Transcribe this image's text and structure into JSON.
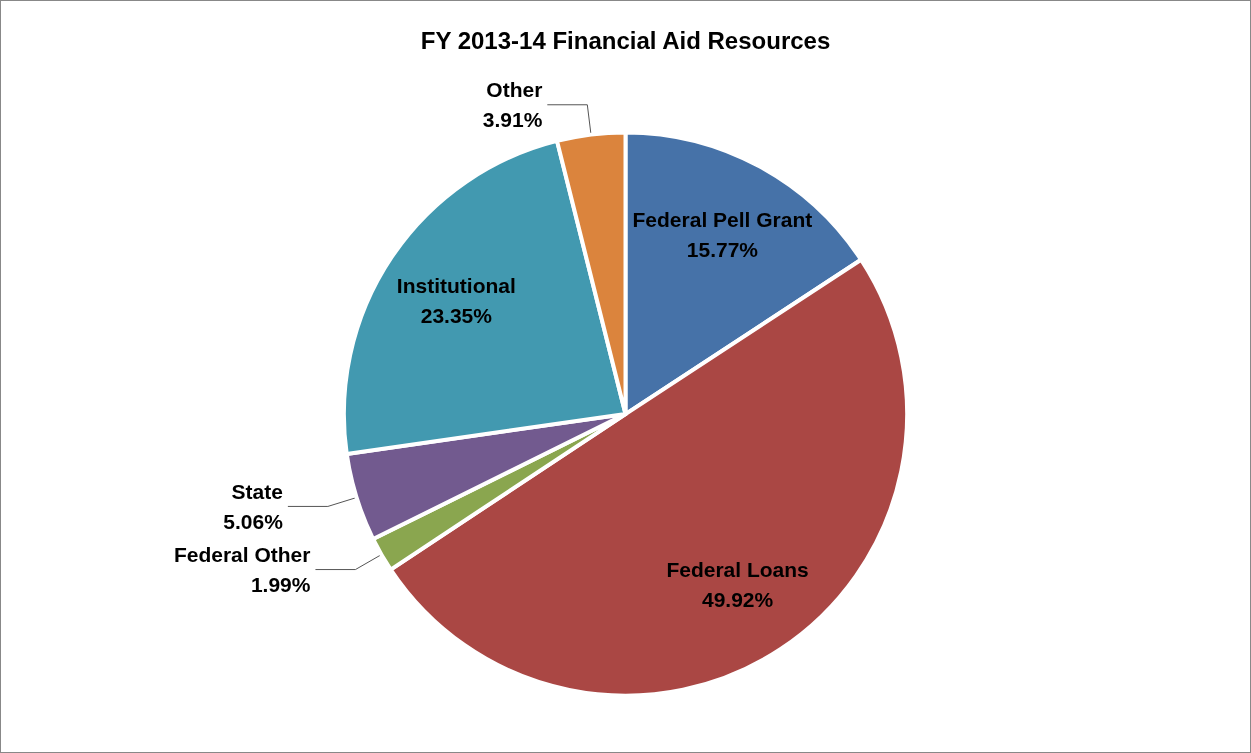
{
  "chart_data": {
    "type": "pie",
    "title": "FY 2013-14 Financial Aid Resources",
    "categories": [
      "Federal Pell Grant",
      "Federal Loans",
      "Federal Other",
      "State",
      "Institutional",
      "Other"
    ],
    "values": [
      15.77,
      49.92,
      1.99,
      5.06,
      23.35,
      3.91
    ],
    "value_labels": [
      "15.77%",
      "49.92%",
      "1.99%",
      "5.06%",
      "23.35%",
      "3.91%"
    ],
    "colors": [
      "#4672a8",
      "#aa4744",
      "#8aa64f",
      "#725a8f",
      "#4299b0",
      "#db843d"
    ],
    "legend": false
  }
}
